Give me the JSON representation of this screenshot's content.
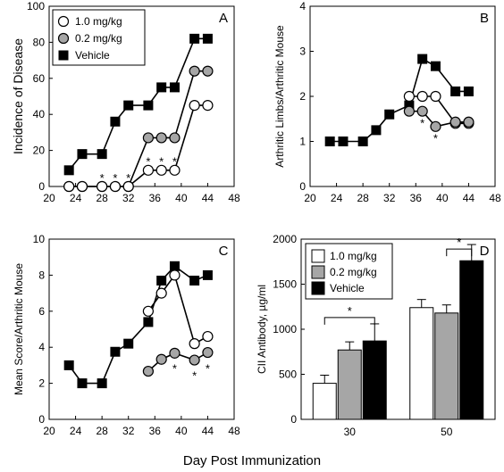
{
  "figure": {
    "common_xlabel": "Day Post Immunization"
  },
  "chart_data": [
    {
      "id": "A",
      "type": "line",
      "panel_label": "A",
      "title": "",
      "xlabel": "",
      "ylabel": "Incidence of Disease",
      "xlim": [
        20,
        48
      ],
      "ylim": [
        0,
        100
      ],
      "xticks": [
        20,
        24,
        28,
        32,
        36,
        40,
        44,
        48
      ],
      "yticks": [
        0,
        20,
        40,
        60,
        80,
        100
      ],
      "grid": false,
      "legend_position": "top-left",
      "series": [
        {
          "name": "Vehicle",
          "marker": "square-filled",
          "x": [
            23,
            25,
            28,
            30,
            32,
            35,
            37,
            39,
            42,
            44
          ],
          "y": [
            9,
            18,
            18,
            36,
            45,
            45,
            55,
            55,
            82,
            82
          ]
        },
        {
          "name": "0.2 mg/kg",
          "marker": "circle-gray",
          "x": [
            23,
            25,
            28,
            30,
            32,
            35,
            37,
            39,
            42,
            44
          ],
          "y": [
            0,
            0,
            0,
            0,
            0,
            27,
            27,
            27,
            64,
            64
          ]
        },
        {
          "name": "1.0 mg/kg",
          "marker": "circle-open",
          "x": [
            23,
            25,
            28,
            30,
            32,
            35,
            37,
            39,
            42,
            44
          ],
          "y": [
            0,
            0,
            0,
            0,
            0,
            9,
            9,
            9,
            45,
            45
          ]
        }
      ],
      "annotations": [
        {
          "text": "*",
          "x": 28,
          "y": 5
        },
        {
          "text": "*",
          "x": 30,
          "y": 5
        },
        {
          "text": "*",
          "x": 32,
          "y": 5
        },
        {
          "text": "*",
          "x": 35,
          "y": 14
        },
        {
          "text": "*",
          "x": 37,
          "y": 14
        },
        {
          "text": "*",
          "x": 39,
          "y": 14
        }
      ]
    },
    {
      "id": "B",
      "type": "line",
      "panel_label": "B",
      "title": "",
      "xlabel": "",
      "ylabel": "Arthritic Limbs/Arthritic Mouse",
      "xlim": [
        20,
        48
      ],
      "ylim": [
        0,
        4
      ],
      "xticks": [
        20,
        24,
        28,
        32,
        36,
        40,
        44,
        48
      ],
      "yticks": [
        0,
        1,
        2,
        3,
        4
      ],
      "grid": false,
      "series": [
        {
          "name": "Vehicle",
          "marker": "square-filled",
          "x": [
            23,
            25,
            28,
            30,
            32,
            35,
            37,
            39,
            42,
            44
          ],
          "y": [
            1.0,
            1.0,
            1.0,
            1.25,
            1.6,
            1.8,
            2.83,
            2.67,
            2.11,
            2.11
          ]
        },
        {
          "name": "1.0 mg/kg",
          "marker": "circle-open",
          "x": [
            35,
            37,
            39,
            42,
            44
          ],
          "y": [
            2.0,
            2.0,
            2.0,
            1.4,
            1.4
          ]
        },
        {
          "name": "0.2 mg/kg",
          "marker": "circle-gray",
          "x": [
            35,
            37,
            39,
            42,
            44
          ],
          "y": [
            1.67,
            1.67,
            1.33,
            1.43,
            1.43
          ]
        }
      ],
      "annotations": [
        {
          "text": "*",
          "x": 37,
          "y": 1.42
        },
        {
          "text": "*",
          "x": 39,
          "y": 1.08
        }
      ]
    },
    {
      "id": "C",
      "type": "line",
      "panel_label": "C",
      "title": "",
      "xlabel": "",
      "ylabel": "Mean Score/Arthritic Mouse",
      "xlim": [
        20,
        48
      ],
      "ylim": [
        0,
        10
      ],
      "xticks": [
        20,
        24,
        28,
        32,
        36,
        40,
        44,
        48
      ],
      "yticks": [
        0,
        2,
        4,
        6,
        8,
        10
      ],
      "grid": false,
      "series": [
        {
          "name": "Vehicle",
          "marker": "square-filled",
          "x": [
            23,
            25,
            28,
            30,
            32,
            35,
            37,
            39,
            42,
            44
          ],
          "y": [
            3.0,
            2.0,
            2.0,
            3.75,
            4.2,
            5.4,
            7.7,
            8.5,
            7.7,
            8.0
          ]
        },
        {
          "name": "1.0 mg/kg",
          "marker": "circle-open",
          "x": [
            35,
            37,
            39,
            42,
            44
          ],
          "y": [
            6.0,
            7.0,
            8.0,
            4.2,
            4.6
          ]
        },
        {
          "name": "0.2 mg/kg",
          "marker": "circle-gray",
          "x": [
            35,
            37,
            39,
            42,
            44
          ],
          "y": [
            2.67,
            3.33,
            3.67,
            3.29,
            3.71
          ]
        }
      ],
      "annotations": [
        {
          "text": "*",
          "x": 39,
          "y": 2.85
        },
        {
          "text": "*",
          "x": 42,
          "y": 2.45
        },
        {
          "text": "*",
          "x": 44,
          "y": 2.85
        }
      ]
    },
    {
      "id": "D",
      "type": "bar",
      "panel_label": "D",
      "title": "",
      "xlabel": "",
      "ylabel": "CII Antibody, µg/ml",
      "categories": [
        "30",
        "50"
      ],
      "ylim": [
        0,
        2000
      ],
      "yticks": [
        0,
        500,
        1000,
        1500,
        2000
      ],
      "grid": false,
      "legend_position": "top-left",
      "series": [
        {
          "name": "1.0 mg/kg",
          "color": "#ffffff",
          "values": [
            400,
            1240
          ],
          "errors": [
            90,
            90
          ]
        },
        {
          "name": "0.2 mg/kg",
          "color": "#a6a6a6",
          "values": [
            770,
            1180
          ],
          "errors": [
            90,
            90
          ]
        },
        {
          "name": "Vehicle",
          "color": "#000000",
          "values": [
            870,
            1760
          ],
          "errors": [
            190,
            180
          ]
        }
      ],
      "comparisons": [
        {
          "category": "30",
          "from_series": "1.0 mg/kg",
          "to_series": "Vehicle",
          "y": 1130,
          "text": "*"
        },
        {
          "category": "50",
          "from_series": "0.2 mg/kg",
          "to_series": "Vehicle",
          "y": 1890,
          "text": "*"
        }
      ]
    }
  ]
}
